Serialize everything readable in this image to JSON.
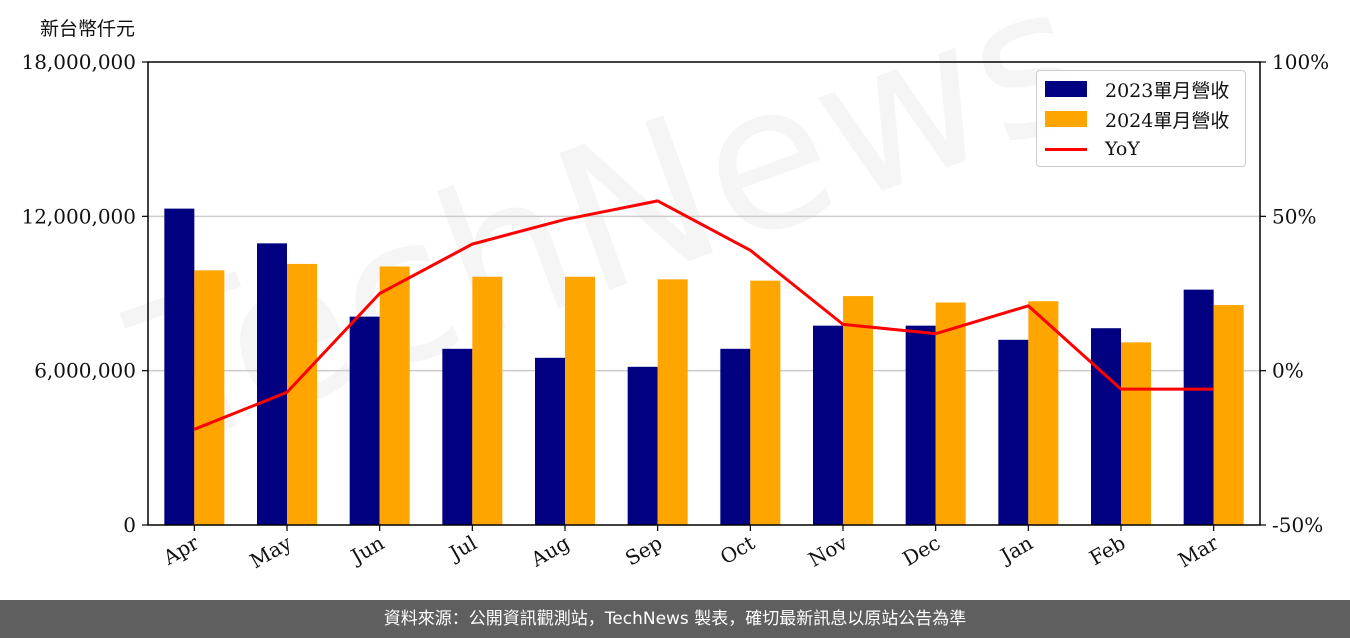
{
  "chart_data": {
    "type": "bar",
    "unit_label": "新台幣仟元",
    "categories": [
      "Apr",
      "May",
      "Jun",
      "Jul",
      "Aug",
      "Sep",
      "Oct",
      "Nov",
      "Dec",
      "Jan",
      "Feb",
      "Mar"
    ],
    "series": [
      {
        "name": "2023單月營收",
        "type": "bar",
        "color": "#000080",
        "values": [
          12300000,
          10950000,
          8100000,
          6850000,
          6500000,
          6150000,
          6850000,
          7750000,
          7750000,
          7200000,
          7650000,
          9150000
        ]
      },
      {
        "name": "2024單月營收",
        "type": "bar",
        "color": "#FFA500",
        "values": [
          9900000,
          10150000,
          10050000,
          9650000,
          9650000,
          9550000,
          9500000,
          8900000,
          8650000,
          8700000,
          7100000,
          8550000
        ]
      },
      {
        "name": "YoY",
        "type": "line",
        "axis": "right",
        "color": "#FF0000",
        "values": [
          -19,
          -7,
          25,
          41,
          49,
          55,
          39,
          15,
          12,
          21,
          -6,
          -6
        ]
      }
    ],
    "ylim": [
      0,
      18000000
    ],
    "y_ticks": [
      0,
      6000000,
      12000000,
      18000000
    ],
    "y_tick_labels": [
      "0",
      "6,000,000",
      "12,000,000",
      "18,000,000"
    ],
    "y2lim": [
      -50,
      100
    ],
    "y2_ticks": [
      -50,
      0,
      50,
      100
    ],
    "y2_tick_labels": [
      "-50%",
      "0%",
      "50%",
      "100%"
    ],
    "grid": "horizontal",
    "legend_position": "top-right",
    "watermark": "TechNews"
  },
  "footer_text": "資料來源：公開資訊觀測站，TechNews 製表，確切最新訊息以原站公告為準"
}
